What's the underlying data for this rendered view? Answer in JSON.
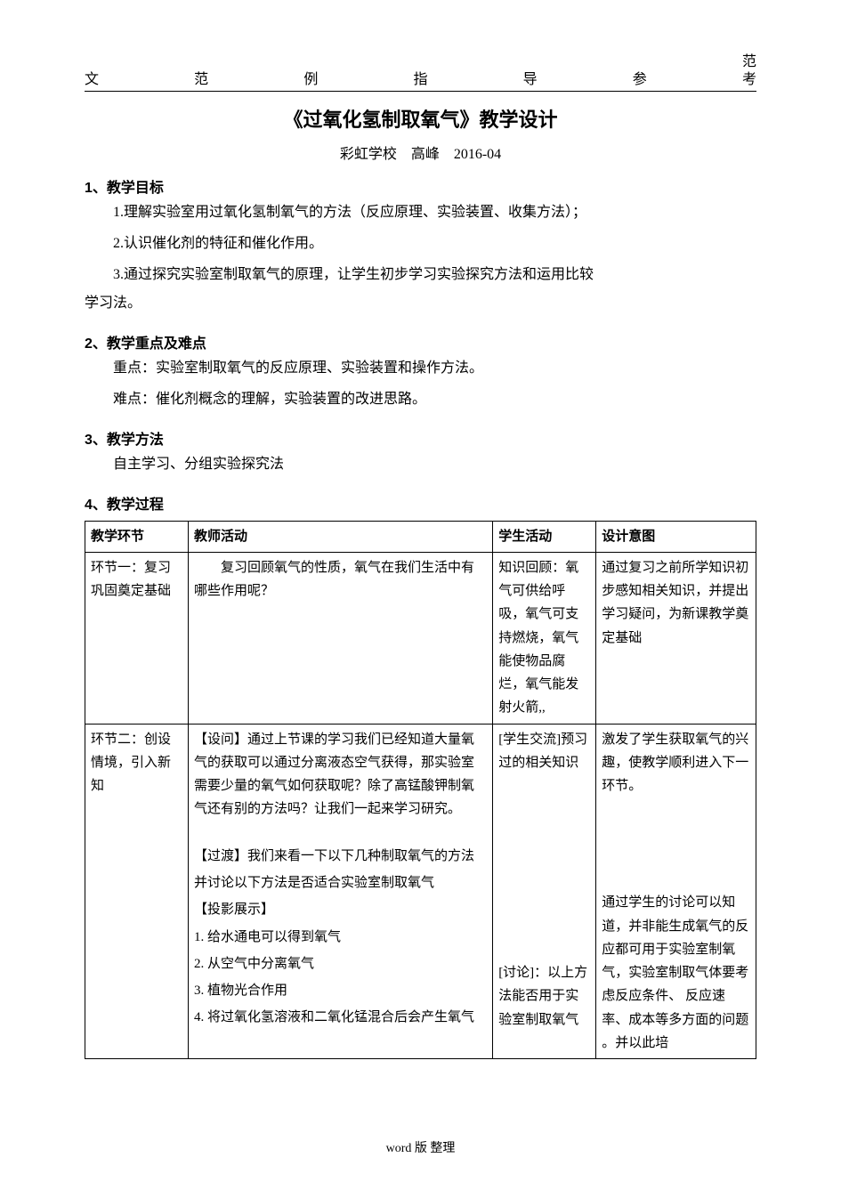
{
  "header": {
    "items": [
      "文",
      "范",
      "例",
      "指",
      "导",
      "参",
      "考"
    ],
    "fanRight": "范"
  },
  "title": "《过氧化氢制取氧气》教学设计",
  "subtitle": "彩虹学校　高峰　2016-04",
  "sections": {
    "s1": {
      "heading": "1、教学目标",
      "p1": "1.理解实验室用过氧化氢制氧气的方法（反应原理、实验装置、收集方法）；",
      "p2": "2.认识催化剂的特征和催化作用。",
      "p3": "3.通过探究实验室制取氧气的原理，让学生初步学习实验探究方法和运用比较",
      "p3b": "学习法。"
    },
    "s2": {
      "heading": "2、教学重点及难点",
      "p1": "重点：实验室制取氧气的反应原理、实验装置和操作方法。",
      "p2": "难点：催化剂概念的理解，实验装置的改进思路。"
    },
    "s3": {
      "heading": "3、教学方法",
      "p1": "自主学习、分组实验探究法"
    },
    "s4": {
      "heading": "4、教学过程"
    }
  },
  "table": {
    "headers": [
      "教学环节",
      "教师活动",
      "学生活动",
      "设计意图"
    ],
    "rows": [
      {
        "c1": "环节一：复习巩固奠定基础",
        "c2": "　　复习回顾氧气的性质，氧气在我们生活中有哪些作用呢？",
        "c3": "知识回顾：氧气可供给呼吸，氧气可支持燃烧，氧气能使物品腐烂，氧气能发射火箭,,",
        "c4": "通过复习之前所学知识初步感知相关知识，并提出学习疑问，为新课教学奠定基础"
      },
      {
        "c1": "环节二：创设情境，引入新知",
        "c2a": "【设问】通过上节课的学习我们已经知道大量氧气的获取可以通过分离液态空气获得，那实验室需要少量的氧气如何获取呢？除了高锰酸钾制氧气还有别的方法吗？让我们一起来学习研究。",
        "c2b": "【过渡】我们来看一下以下几种制取氧气的方法",
        "c2c": "并讨论以下方法是否适合实验室制取氧气",
        "c2d": "【投影展示】",
        "c2e": "1. 给水通电可以得到氧气",
        "c2f": "2. 从空气中分离氧气",
        "c2g": "3. 植物光合作用",
        "c2h": "4. 将过氧化氢溶液和二氧化锰混合后会产生氧气",
        "c3a": "[学生交流]预习过的相关知识",
        "c3b": "[讨论]：以上方法能否用于实验室制取氧气",
        "c4a": "激发了学生获取氧气的兴趣，使教学顺利进入下一环节。",
        "c4b": "通过学生的讨论可以知道，并非能生成氧气的反应都可用于实验室制氧气，实验室制取气体要考虑反应条件、 反应速率、成本等多方面的问题 。并以此培"
      }
    ]
  },
  "footer": "word 版 整理",
  "colors": {
    "text": "#000000",
    "background": "#ffffff",
    "border": "#000000"
  },
  "fonts": {
    "body": "SimSun",
    "heading": "SimHei",
    "subtitle": "KaiTi",
    "bodySize": 16,
    "titleSize": 22,
    "tableSize": 15,
    "footerSize": 14
  }
}
